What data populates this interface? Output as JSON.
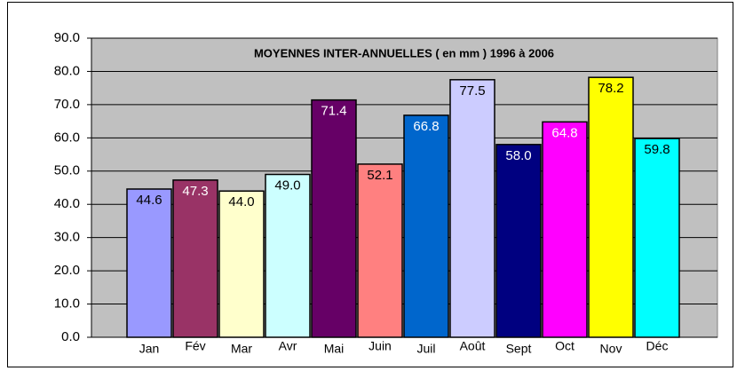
{
  "chart_data": {
    "type": "bar",
    "title": "MOYENNES INTER-ANNUELLES ( en mm ) 1996 à 2006",
    "categories": [
      "Jan",
      "Fév",
      "Mar",
      "Avr",
      "Mai",
      "Juin",
      "Juil",
      "Août",
      "Sept",
      "Oct",
      "Nov",
      "Déc"
    ],
    "values": [
      44.6,
      47.3,
      44.0,
      49.0,
      71.4,
      52.1,
      66.8,
      77.5,
      58.0,
      64.8,
      78.2,
      59.8
    ],
    "value_labels": [
      "44.6",
      "47.3",
      "44.0",
      "49.0",
      "71.4",
      "52.1",
      "66.8",
      "77.5",
      "58.0",
      "64.8",
      "78.2",
      "59.8"
    ],
    "colors": [
      "#9999ff",
      "#993366",
      "#ffffcc",
      "#ccffff",
      "#660066",
      "#ff8080",
      "#0066cc",
      "#ccccff",
      "#000080",
      "#ff00ff",
      "#ffff00",
      "#00ffff"
    ],
    "ylim": [
      0,
      90
    ],
    "yticks": [
      {
        "value": 0,
        "label": "0.0"
      },
      {
        "value": 10,
        "label": "10.0"
      },
      {
        "value": 20,
        "label": "20.0"
      },
      {
        "value": 30,
        "label": "30.0"
      },
      {
        "value": 40,
        "label": "40.0"
      },
      {
        "value": 50,
        "label": "50.0"
      },
      {
        "value": 60,
        "label": "60.0"
      },
      {
        "value": 70,
        "label": "70.0"
      },
      {
        "value": 80,
        "label": "80.0"
      },
      {
        "value": 90,
        "label": "90.0"
      }
    ],
    "grid": true
  }
}
